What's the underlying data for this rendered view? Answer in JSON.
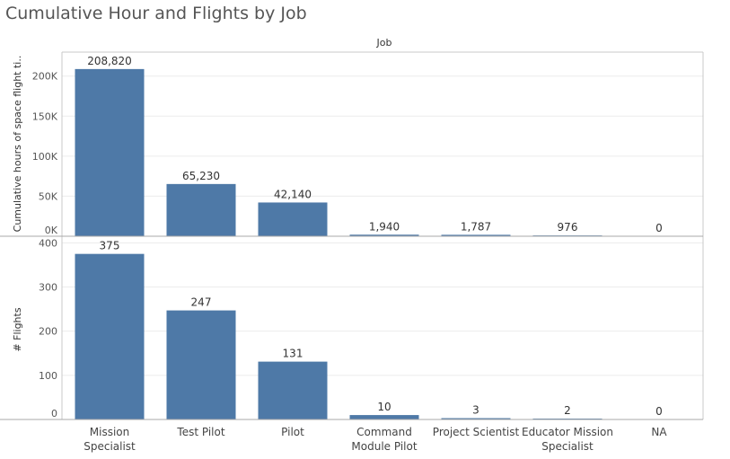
{
  "title": "Cumulative Hour and Flights by Job",
  "facet_header": "Job",
  "colors": {
    "bar": "#4e79a7",
    "grid": "#ececec",
    "axis": "#c8c8c8",
    "text": "#333333"
  },
  "chart_data": [
    {
      "type": "bar",
      "ylabel": "Cumulative hours of space flight ti..",
      "ylim": [
        0,
        230000
      ],
      "yticks": [
        0,
        50000,
        100000,
        150000,
        200000
      ],
      "ytick_labels": [
        "0K",
        "50K",
        "100K",
        "150K",
        "200K"
      ],
      "categories": [
        "Mission Specialist",
        "Test Pilot",
        "Pilot",
        "Command Module Pilot",
        "Project Scientist",
        "Educator Mission Specialist",
        "NA"
      ],
      "values": [
        208820,
        65230,
        42140,
        1940,
        1787,
        976,
        0
      ],
      "value_labels": [
        "208,820",
        "65,230",
        "42,140",
        "1,940",
        "1,787",
        "976",
        "0"
      ]
    },
    {
      "type": "bar",
      "ylabel": "# Flights",
      "ylim": [
        0,
        415
      ],
      "yticks": [
        0,
        100,
        200,
        300,
        400
      ],
      "ytick_labels": [
        "0",
        "100",
        "200",
        "300",
        "400"
      ],
      "categories": [
        "Mission Specialist",
        "Test Pilot",
        "Pilot",
        "Command Module Pilot",
        "Project Scientist",
        "Educator Mission Specialist",
        "NA"
      ],
      "values": [
        375,
        247,
        131,
        10,
        3,
        2,
        0
      ],
      "value_labels": [
        "375",
        "247",
        "131",
        "10",
        "3",
        "2",
        "0"
      ]
    }
  ],
  "x_tick_labels": [
    [
      "Mission",
      "Specialist"
    ],
    [
      "Test Pilot"
    ],
    [
      "Pilot"
    ],
    [
      "Command",
      "Module Pilot"
    ],
    [
      "Project Scientist"
    ],
    [
      "Educator Mission",
      "Specialist"
    ],
    [
      "NA"
    ]
  ]
}
